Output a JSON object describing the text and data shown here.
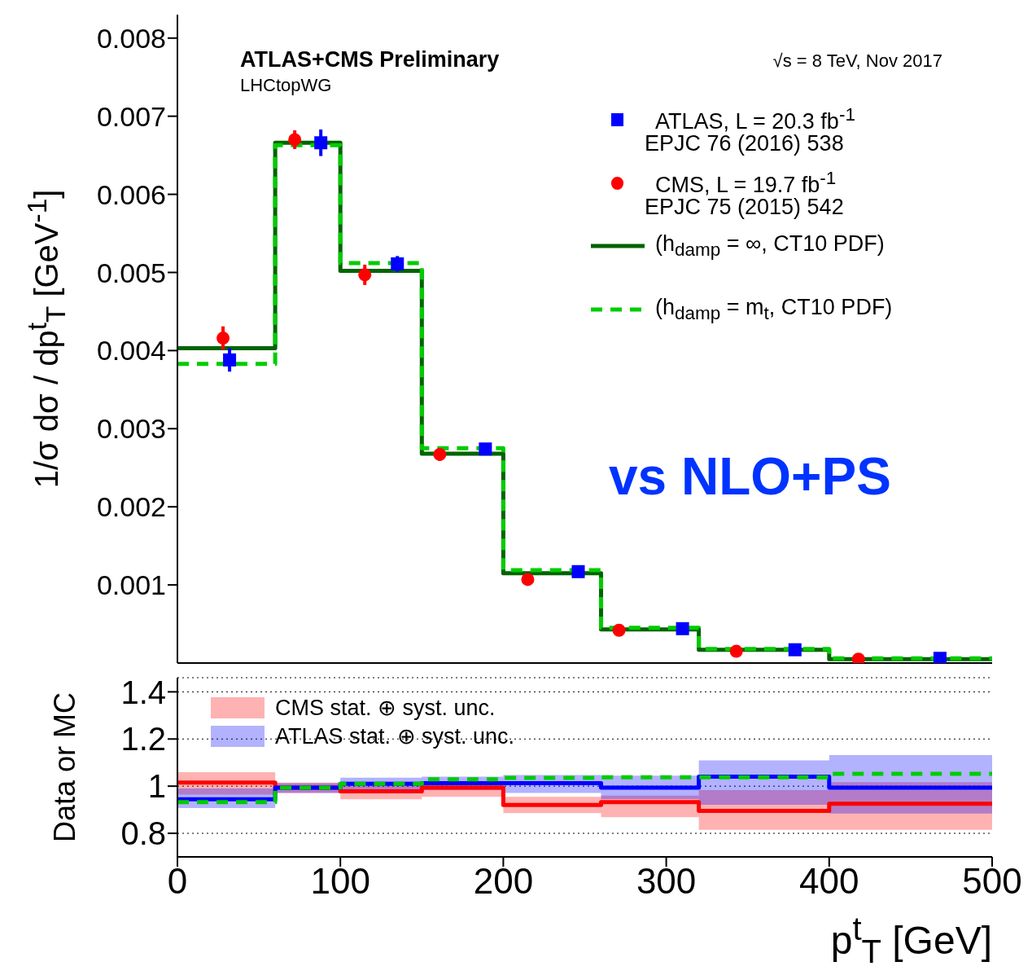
{
  "chart_data": [
    {
      "type": "step",
      "title": "ATLAS+CMS Preliminary",
      "ylabel": "1/σ dσ / dp$^{t}$$_{T}$ [GeV$^{-1}$]",
      "annotations": [
        "LHCtopWG",
        "√s = 8 TeV, Nov 2017",
        "EPJC 76 (2016) 538",
        "EPJC 75 (2015) 542",
        "vs NLO+PS"
      ],
      "xlim": [
        0,
        500
      ],
      "xticks": [
        0,
        100,
        200,
        300,
        400,
        500
      ],
      "ylim": [
        0,
        0.0083
      ],
      "yticks": [
        0.001,
        0.002,
        0.003,
        0.004,
        0.005,
        0.006,
        0.007,
        0.008
      ],
      "tick_labels": "y",
      "legend": "top right",
      "series": [
        {
          "type": "scatter",
          "name": "ATLAS, L = 20.3 fb$^{-1}$",
          "color": "#0000ff",
          "marker": "square",
          "x": [
            32,
            88,
            135,
            189,
            246,
            310,
            379,
            468
          ],
          "values": [
            0.00388,
            0.00666,
            0.00511,
            0.00274,
            0.00117,
            0.00044,
            0.00017,
            6e-05
          ],
          "errors": [
            0.00015,
            0.00017,
            0.0001,
            null,
            null,
            null,
            null,
            null
          ]
        },
        {
          "type": "scatter",
          "name": "CMS, L = 19.7 fb$^{-1}$",
          "color": "#ff0000",
          "marker": "circle",
          "x": [
            28,
            72,
            115,
            161,
            215,
            271,
            343,
            418
          ],
          "values": [
            0.00416,
            0.0067,
            0.00497,
            0.00267,
            0.00107,
            0.00042,
            0.00015,
            5e-05
          ],
          "errors": [
            0.00015,
            0.00012,
            0.00013,
            8e-05,
            null,
            null,
            null,
            null
          ]
        },
        {
          "type": "step",
          "name": "(h$_{damp}$ = ∞, CT10 PDF)",
          "color": "#006400",
          "line_style": "solid",
          "x": [
            0,
            60,
            100,
            150,
            200,
            260,
            320,
            400,
            500
          ],
          "values": [
            0.00403,
            0.00666,
            0.00502,
            0.00268,
            0.00115,
            0.00043,
            0.00017,
            5e-05,
            5e-05
          ]
        },
        {
          "type": "step",
          "name": "(h$_{damp}$ = m$_{t}$, CT10 PDF)",
          "color": "#00cc00",
          "line_style": "dashed",
          "x": [
            0,
            60,
            100,
            150,
            200,
            260,
            320,
            400,
            500
          ],
          "values": [
            0.00383,
            0.00663,
            0.00512,
            0.00275,
            0.00119,
            0.00045,
            0.00018,
            6e-05,
            6e-05
          ]
        }
      ]
    },
    {
      "type": "step",
      "xlabel": "p$^{t}$$_{T}$ [GeV]",
      "ylabel": "Data or MC",
      "xlim": [
        0,
        500
      ],
      "xticks": [
        0,
        100,
        200,
        300,
        400,
        500
      ],
      "ylim": [
        0.7,
        1.46
      ],
      "yticks": [
        0.8,
        1,
        1.2,
        1.4
      ],
      "grid": "y",
      "legend": "top left",
      "series": [
        {
          "name": "CMS stat. ⊕  syst. unc.",
          "color": "#ff0000",
          "line_style": "solid",
          "x": [
            0,
            60,
            100,
            150,
            200,
            260,
            320,
            400,
            500
          ],
          "values": [
            1.015,
            0.994,
            0.978,
            0.994,
            0.92,
            0.932,
            0.895,
            0.925,
            0.925
          ],
          "lower": [
            0.964,
            0.971,
            0.944,
            0.955,
            0.886,
            0.868,
            0.815,
            0.815,
            0.815
          ],
          "upper": [
            1.059,
            1.015,
            1.006,
            1.017,
            0.955,
            0.96,
            0.983,
            1.017,
            1.017
          ]
        },
        {
          "name": "ATLAS stat. ⊕ syst. unc.",
          "color": "#0000ff",
          "line_style": "solid",
          "x": [
            0,
            60,
            100,
            150,
            200,
            260,
            320,
            400,
            500
          ],
          "values": [
            0.944,
            0.994,
            1.01,
            1.013,
            1.013,
            0.994,
            1.04,
            0.994,
            0.994
          ],
          "lower": [
            0.907,
            0.971,
            0.978,
            0.983,
            0.971,
            0.944,
            0.921,
            0.884,
            0.884
          ],
          "upper": [
            0.99,
            1.013,
            1.036,
            1.04,
            1.047,
            1.045,
            1.109,
            1.132,
            1.132
          ]
        },
        {
          "color": "#00cc00",
          "line_style": "dashed",
          "x": [
            0,
            60,
            100,
            150,
            200,
            260,
            320,
            400,
            500
          ],
          "values": [
            0.932,
            0.994,
            1.01,
            1.029,
            1.035,
            1.038,
            1.038,
            1.052,
            1.052
          ]
        }
      ]
    }
  ]
}
